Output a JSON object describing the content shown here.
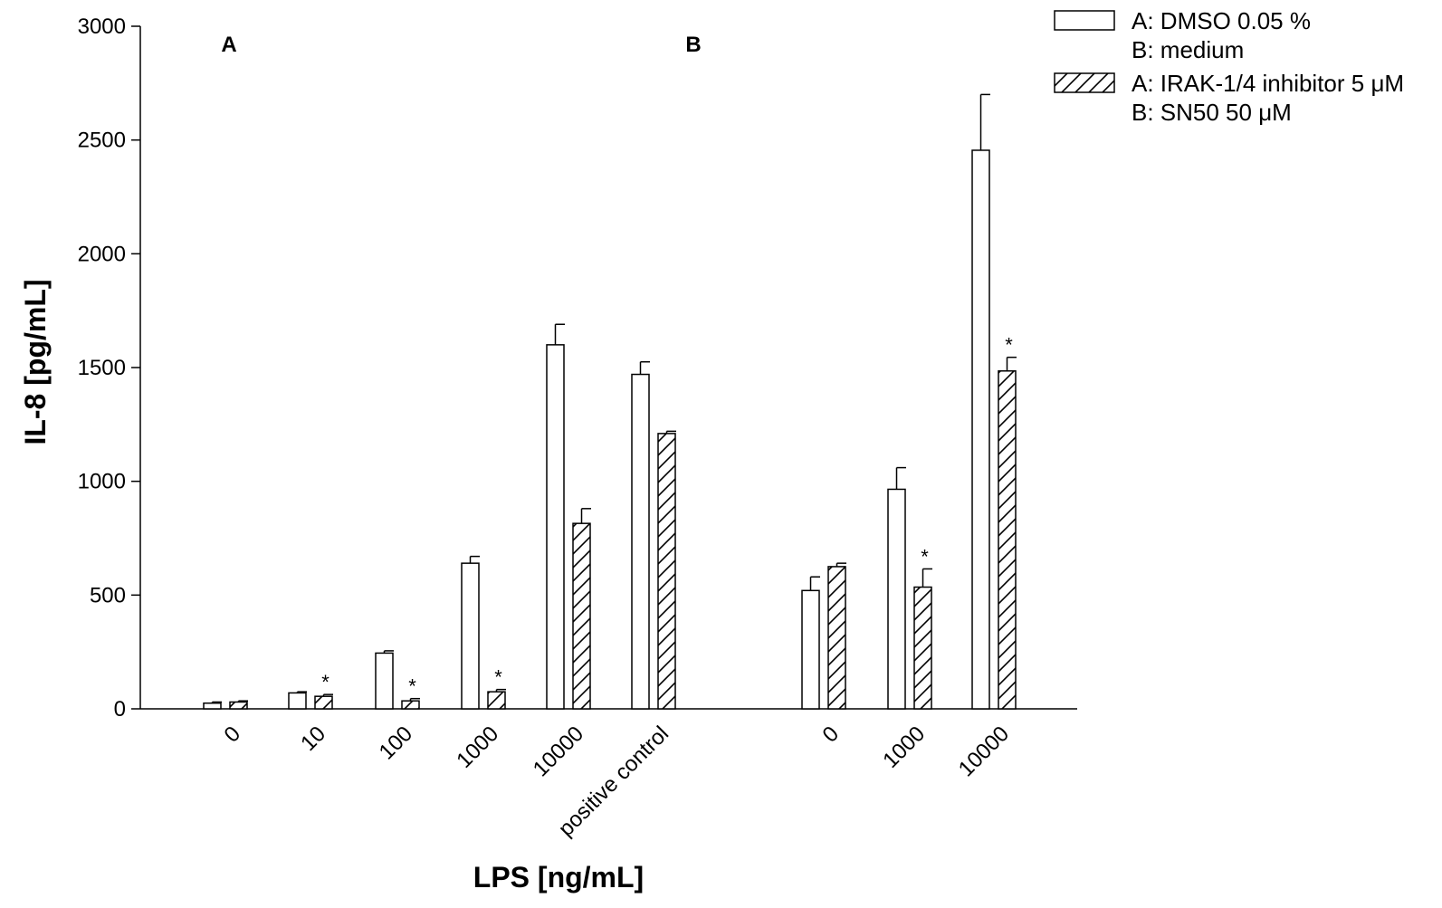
{
  "chart_data": {
    "type": "bar",
    "ylabel": "IL-8 [pg/mL]",
    "xlabel": "LPS [ng/mL]",
    "ylim": [
      0,
      3000
    ],
    "yticks": [
      0,
      500,
      1000,
      1500,
      2000,
      2500,
      3000
    ],
    "grid": false,
    "legend_position": "top-right",
    "panels": [
      {
        "label": "A",
        "categories": [
          "0",
          "10",
          "100",
          "1000",
          "10000",
          "positive control"
        ],
        "series": [
          {
            "name": "A: DMSO 0.05 %",
            "pattern": "open",
            "values": [
              25,
              70,
              245,
              640,
              1600,
              1470
            ],
            "errors": [
              5,
              5,
              10,
              30,
              90,
              55
            ]
          },
          {
            "name": "A: IRAK-1/4 inhibitor 5 μM",
            "pattern": "hatched",
            "values": [
              30,
              55,
              35,
              75,
              815,
              1210
            ],
            "errors": [
              5,
              8,
              10,
              10,
              65,
              10
            ]
          }
        ],
        "significant": [
          false,
          true,
          true,
          true,
          false,
          false
        ]
      },
      {
        "label": "B",
        "categories": [
          "0",
          "1000",
          "10000"
        ],
        "series": [
          {
            "name": "B: medium",
            "pattern": "open",
            "values": [
              520,
              965,
              2455
            ],
            "errors": [
              60,
              95,
              245
            ]
          },
          {
            "name": "B: SN50 50 μM",
            "pattern": "hatched",
            "values": [
              625,
              535,
              1485
            ],
            "errors": [
              15,
              80,
              60
            ]
          }
        ],
        "significant": [
          false,
          true,
          true
        ]
      }
    ],
    "legend": [
      {
        "pattern": "open",
        "lines": [
          "A: DMSO 0.05 %",
          "B: medium"
        ]
      },
      {
        "pattern": "hatched",
        "lines": [
          "A: IRAK-1/4 inhibitor 5 μM",
          "B: SN50 50 μM"
        ]
      }
    ],
    "significance_marker": "*"
  }
}
